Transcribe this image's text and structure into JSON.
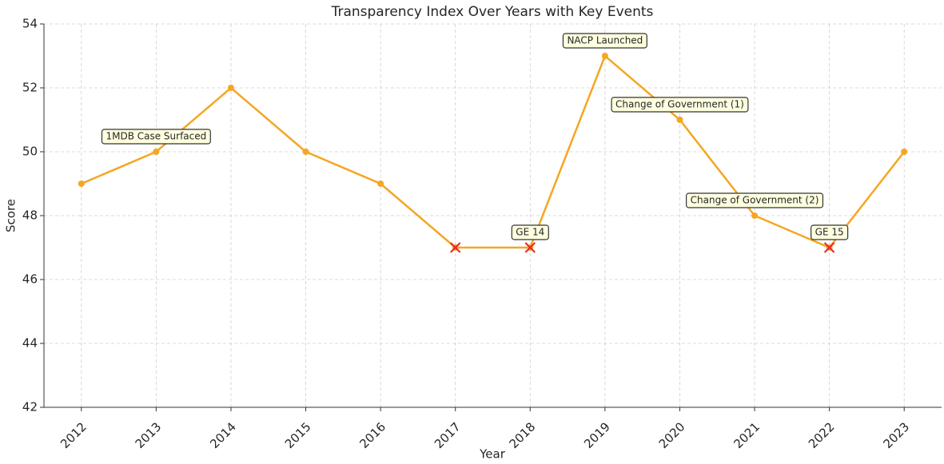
{
  "chart_data": {
    "type": "line",
    "title": "Transparency Index Over Years with Key Events",
    "x_label": "Year",
    "y_label": "Score",
    "x": [
      2012,
      2013,
      2014,
      2015,
      2016,
      2017,
      2018,
      2019,
      2020,
      2021,
      2022,
      2023
    ],
    "series": [
      {
        "name": "Transparency Index",
        "color": "#f5a623",
        "values": [
          49,
          50,
          52,
          50,
          49,
          47,
          47,
          53,
          51,
          48,
          47,
          50
        ]
      }
    ],
    "highlight_x": [
      2017,
      2018,
      2022
    ],
    "highlight_color": "#e8262a",
    "annotations": [
      {
        "x": 2013,
        "text": "1MDB Case Surfaced"
      },
      {
        "x": 2018,
        "text": "GE 14"
      },
      {
        "x": 2019,
        "text": "NACP Launched"
      },
      {
        "x": 2020,
        "text": "Change of Government (1)"
      },
      {
        "x": 2021,
        "text": "Change of Government (2)"
      },
      {
        "x": 2022,
        "text": "GE 15"
      }
    ],
    "xlim": [
      2011.5,
      2023.5
    ],
    "xticks": [
      2012,
      2013,
      2014,
      2015,
      2016,
      2017,
      2018,
      2019,
      2020,
      2021,
      2022,
      2023
    ],
    "ylim": [
      42,
      54
    ],
    "yticks": [
      42,
      44,
      46,
      48,
      50,
      52,
      54
    ],
    "grid": true
  }
}
